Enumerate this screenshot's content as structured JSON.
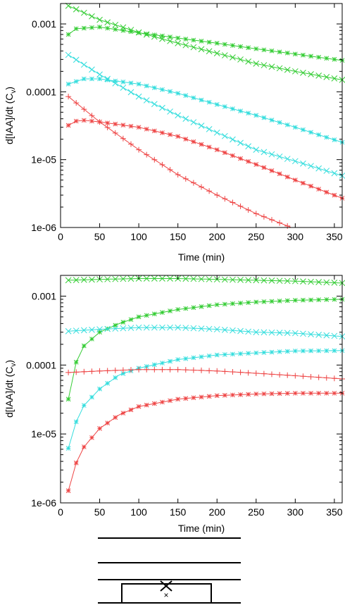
{
  "colors": {
    "green": "#33cc33",
    "cyan": "#33dddd",
    "red": "#ee4444",
    "axis": "#000000"
  },
  "chart_data": [
    {
      "type": "line",
      "title": "",
      "xlabel": "Time (min)",
      "ylabel": "d[IAA]/dt (C_v)",
      "ylabel_main": "d[IAA]/dt (C",
      "ylabel_sub": "v",
      "ylabel_close": ")",
      "xlim": [
        0,
        360
      ],
      "ylim": [
        1e-06,
        0.002
      ],
      "yscale": "log",
      "grid": false,
      "xticks": [
        "0",
        "50",
        "100",
        "150",
        "200",
        "250",
        "300",
        "350"
      ],
      "yticks": [
        "0.001",
        "0.0001",
        "1e-05",
        "1e-06"
      ],
      "series": [
        {
          "color": "green",
          "marker": "star",
          "x": [
            10,
            20,
            50,
            100,
            150,
            200,
            250,
            300,
            360
          ],
          "y": [
            0.0007,
            0.00085,
            0.0009,
            0.00074,
            0.00062,
            0.00052,
            0.00043,
            0.00036,
            0.00029
          ]
        },
        {
          "color": "green",
          "marker": "x",
          "x": [
            10,
            50,
            100,
            150,
            200,
            250,
            300,
            360
          ],
          "y": [
            0.00185,
            0.00115,
            0.00075,
            0.00052,
            0.00037,
            0.00026,
            0.0002,
            0.00015
          ]
        },
        {
          "color": "cyan",
          "marker": "x",
          "x": [
            10,
            50,
            100,
            150,
            200,
            250,
            300,
            360
          ],
          "y": [
            0.00035,
            0.00018,
            8.5e-05,
            4.5e-05,
            2.5e-05,
            1.4e-05,
            9.5e-06,
            5.8e-06
          ]
        },
        {
          "color": "cyan",
          "marker": "star",
          "x": [
            10,
            30,
            50,
            100,
            150,
            200,
            250,
            300,
            360
          ],
          "y": [
            0.00013,
            0.000155,
            0.000155,
            0.00013,
            9.5e-05,
            6.5e-05,
            4.5e-05,
            3e-05,
            1.8e-05
          ]
        },
        {
          "color": "red",
          "marker": "star",
          "x": [
            10,
            20,
            30,
            50,
            100,
            150,
            200,
            250,
            300,
            360
          ],
          "y": [
            3.2e-05,
            3.7e-05,
            3.8e-05,
            3.6e-05,
            3e-05,
            2.2e-05,
            1.4e-05,
            8.5e-06,
            5e-06,
            2.7e-06
          ]
        },
        {
          "color": "red",
          "marker": "plus",
          "x": [
            10,
            50,
            100,
            150,
            200,
            250,
            295
          ],
          "y": [
            8.5e-05,
            3.6e-05,
            1.4e-05,
            6e-06,
            3e-06,
            1.6e-06,
            1e-06
          ]
        }
      ]
    },
    {
      "type": "line",
      "title": "",
      "xlabel": "Time (min)",
      "ylabel": "d[IAA]/dt (C_v)",
      "ylabel_main": "d[IAA]/dt (C",
      "ylabel_sub": "v",
      "ylabel_close": ")",
      "xlim": [
        0,
        360
      ],
      "ylim": [
        1e-06,
        0.002
      ],
      "yscale": "log",
      "grid": false,
      "xticks": [
        "0",
        "50",
        "100",
        "150",
        "200",
        "250",
        "300",
        "350"
      ],
      "yticks": [
        "0.001",
        "0.0001",
        "1e-05",
        "1e-06"
      ],
      "series": [
        {
          "color": "green",
          "marker": "x",
          "x": [
            10,
            50,
            100,
            150,
            200,
            250,
            300,
            360
          ],
          "y": [
            0.0017,
            0.00175,
            0.0018,
            0.0018,
            0.00175,
            0.0017,
            0.00165,
            0.00155
          ]
        },
        {
          "color": "green",
          "marker": "star",
          "x": [
            10,
            20,
            30,
            50,
            75,
            100,
            150,
            200,
            250,
            300,
            360
          ],
          "y": [
            3.2e-05,
            0.00011,
            0.00019,
            0.0003,
            0.0004,
            0.0005,
            0.00064,
            0.00075,
            0.00082,
            0.00087,
            0.0009
          ]
        },
        {
          "color": "cyan",
          "marker": "x",
          "x": [
            10,
            50,
            100,
            150,
            200,
            250,
            300,
            360
          ],
          "y": [
            0.00031,
            0.00033,
            0.00035,
            0.00035,
            0.00033,
            0.0003,
            0.00029,
            0.00026
          ]
        },
        {
          "color": "cyan",
          "marker": "star",
          "x": [
            10,
            20,
            30,
            50,
            75,
            100,
            150,
            200,
            250,
            300,
            360
          ],
          "y": [
            6.2e-06,
            1.5e-05,
            2.6e-05,
            4.5e-05,
            7.2e-05,
            9e-05,
            0.00012,
            0.00014,
            0.00015,
            0.00016,
            0.000162
          ]
        },
        {
          "color": "red",
          "marker": "plus",
          "x": [
            10,
            50,
            100,
            150,
            200,
            250,
            300,
            360
          ],
          "y": [
            7.8e-05,
            8.2e-05,
            8.6e-05,
            8.6e-05,
            8.2e-05,
            7.6e-05,
            7e-05,
            6.3e-05
          ]
        },
        {
          "color": "red",
          "marker": "star",
          "x": [
            10,
            20,
            30,
            50,
            75,
            100,
            150,
            200,
            250,
            300,
            360
          ],
          "y": [
            1.5e-06,
            3.8e-06,
            6.5e-06,
            1.2e-05,
            1.9e-05,
            2.5e-05,
            3.2e-05,
            3.6e-05,
            3.8e-05,
            3.9e-05,
            3.9e-05
          ]
        }
      ]
    }
  ],
  "schematic": {
    "marker": "×"
  }
}
